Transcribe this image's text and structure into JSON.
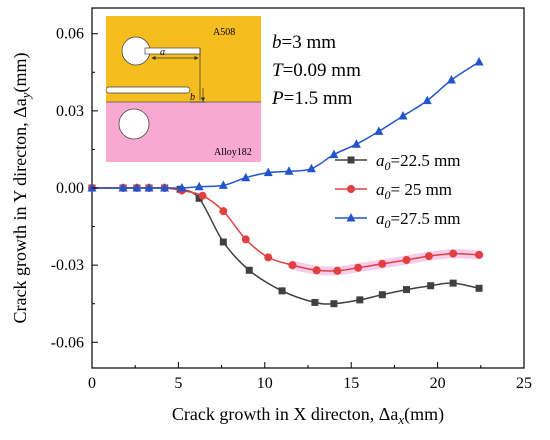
{
  "chart_data": {
    "type": "line",
    "xlabel": "Crack growth in X directon, Δa",
    "xlabel_sub": "x",
    "xlabel_tail": "(mm)",
    "ylabel": "Crack growth in Y directon, Δa",
    "ylabel_sub": "y",
    "ylabel_tail": "(mm)",
    "xlim": [
      0,
      25
    ],
    "ylim": [
      -0.07,
      0.07
    ],
    "xticks": [
      "0",
      "5",
      "10",
      "15",
      "20",
      "25"
    ],
    "yticks": [
      "0.06",
      "0.03",
      "0.00",
      "-0.03",
      "-0.06"
    ],
    "ytick_values": [
      0.06,
      0.03,
      0.0,
      -0.03,
      -0.06
    ],
    "xtick_values": [
      0,
      5,
      10,
      15,
      20,
      25
    ],
    "annotations": [
      {
        "var": "b",
        "text": "=3 mm"
      },
      {
        "var": "T",
        "text": "=0.09 mm"
      },
      {
        "var": "P",
        "text": "=1.5 mm"
      }
    ],
    "series": [
      {
        "name_var": "a",
        "name_sub": "0",
        "name_tail": "=22.5 mm",
        "color": "#404040",
        "marker": "square",
        "x": [
          0,
          1.8,
          2.6,
          3.3,
          4.2,
          5.1,
          6.2,
          7.6,
          9.1,
          11.0,
          12.9,
          14.0,
          15.5,
          16.8,
          18.2,
          19.6,
          20.9,
          22.4
        ],
        "y": [
          0,
          0,
          0,
          0,
          0,
          -0.0005,
          -0.004,
          -0.021,
          -0.032,
          -0.04,
          -0.0445,
          -0.045,
          -0.0435,
          -0.0415,
          -0.0395,
          -0.038,
          -0.037,
          -0.039
        ]
      },
      {
        "name_var": "a",
        "name_sub": "0",
        "name_tail": "= 25   mm",
        "color": "#e04040",
        "marker": "circle",
        "x": [
          0,
          1.8,
          2.6,
          3.3,
          4.2,
          5.2,
          6.4,
          7.6,
          8.9,
          10.2,
          11.6,
          13.0,
          14.2,
          15.4,
          16.8,
          18.2,
          19.5,
          20.9,
          22.4
        ],
        "y": [
          0,
          0,
          0,
          0,
          0,
          -0.001,
          -0.003,
          -0.009,
          -0.02,
          -0.027,
          -0.03,
          -0.032,
          -0.0322,
          -0.031,
          -0.0295,
          -0.028,
          -0.0265,
          -0.0255,
          -0.026
        ]
      },
      {
        "name_var": "a",
        "name_sub": "0",
        "name_tail": "=27.5 mm",
        "color": "#2255cc",
        "marker": "triangle",
        "x": [
          0,
          1.8,
          2.6,
          3.3,
          4.2,
          5.2,
          6.2,
          7.6,
          8.9,
          10.2,
          11.4,
          12.7,
          14.0,
          15.3,
          16.6,
          18.0,
          19.4,
          20.8,
          22.4
        ],
        "y": [
          0,
          0,
          0,
          0,
          0,
          0,
          0.0005,
          0.001,
          0.004,
          0.006,
          0.0065,
          0.0075,
          0.013,
          0.017,
          0.022,
          0.028,
          0.034,
          0.042,
          0.049
        ]
      }
    ],
    "inset": {
      "top_label": "A508",
      "bottom_label": "Alloy182",
      "dim_a": "a",
      "dim_b": "b",
      "top_color": "#f5be1e",
      "bottom_color": "#f7a9d2"
    }
  }
}
